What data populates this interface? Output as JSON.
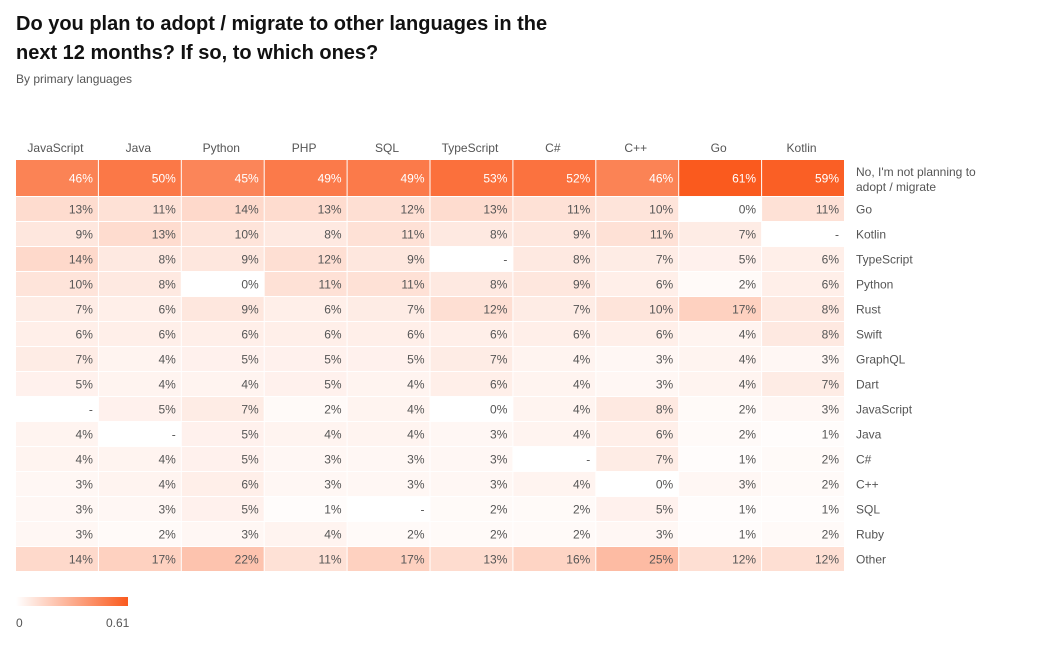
{
  "title": "Do you plan to adopt / migrate to other languages in the next 12 months? If so, to which ones?",
  "subtitle": "By primary languages",
  "legend": {
    "min_label": "0",
    "max_label": "0.61",
    "low_color": "#ffffff",
    "high_color": "#fa5a1e"
  },
  "chart_data": {
    "type": "heatmap",
    "title": "Do you plan to adopt / migrate to other languages in the next 12 months? If so, to which ones?",
    "subtitle": "By primary languages",
    "columns": [
      "JavaScript",
      "Java",
      "Python",
      "PHP",
      "SQL",
      "TypeScript",
      "C#",
      "C++",
      "Go",
      "Kotlin"
    ],
    "rows": [
      {
        "label": "No, I'm not planning to adopt / migrate",
        "cells": [
          "46%",
          "50%",
          "45%",
          "49%",
          "49%",
          "53%",
          "52%",
          "46%",
          "61%",
          "59%"
        ]
      },
      {
        "label": "Go",
        "cells": [
          "13%",
          "11%",
          "14%",
          "13%",
          "12%",
          "13%",
          "11%",
          "10%",
          "0%",
          "11%"
        ]
      },
      {
        "label": "Kotlin",
        "cells": [
          "9%",
          "13%",
          "10%",
          "8%",
          "11%",
          "8%",
          "9%",
          "11%",
          "7%",
          "-"
        ]
      },
      {
        "label": "TypeScript",
        "cells": [
          "14%",
          "8%",
          "9%",
          "12%",
          "9%",
          "-",
          "8%",
          "7%",
          "5%",
          "6%"
        ]
      },
      {
        "label": "Python",
        "cells": [
          "10%",
          "8%",
          "0%",
          "11%",
          "11%",
          "8%",
          "9%",
          "6%",
          "2%",
          "6%"
        ]
      },
      {
        "label": "Rust",
        "cells": [
          "7%",
          "6%",
          "9%",
          "6%",
          "7%",
          "12%",
          "7%",
          "10%",
          "17%",
          "8%"
        ]
      },
      {
        "label": "Swift",
        "cells": [
          "6%",
          "6%",
          "6%",
          "6%",
          "6%",
          "6%",
          "6%",
          "6%",
          "4%",
          "8%"
        ]
      },
      {
        "label": "GraphQL",
        "cells": [
          "7%",
          "4%",
          "5%",
          "5%",
          "5%",
          "7%",
          "4%",
          "3%",
          "4%",
          "3%"
        ]
      },
      {
        "label": "Dart",
        "cells": [
          "5%",
          "4%",
          "4%",
          "5%",
          "4%",
          "6%",
          "4%",
          "3%",
          "4%",
          "7%"
        ]
      },
      {
        "label": "JavaScript",
        "cells": [
          "-",
          "5%",
          "7%",
          "2%",
          "4%",
          "0%",
          "4%",
          "8%",
          "2%",
          "3%"
        ]
      },
      {
        "label": "Java",
        "cells": [
          "4%",
          "-",
          "5%",
          "4%",
          "4%",
          "3%",
          "4%",
          "6%",
          "2%",
          "1%"
        ]
      },
      {
        "label": "C#",
        "cells": [
          "4%",
          "4%",
          "5%",
          "3%",
          "3%",
          "3%",
          "-",
          "7%",
          "1%",
          "2%"
        ]
      },
      {
        "label": "C++",
        "cells": [
          "3%",
          "4%",
          "6%",
          "3%",
          "3%",
          "3%",
          "4%",
          "0%",
          "3%",
          "2%"
        ]
      },
      {
        "label": "SQL",
        "cells": [
          "3%",
          "3%",
          "5%",
          "1%",
          "-",
          "2%",
          "2%",
          "5%",
          "1%",
          "1%"
        ]
      },
      {
        "label": "Ruby",
        "cells": [
          "3%",
          "2%",
          "3%",
          "4%",
          "2%",
          "2%",
          "2%",
          "3%",
          "1%",
          "2%"
        ]
      },
      {
        "label": "Other",
        "cells": [
          "14%",
          "17%",
          "22%",
          "11%",
          "17%",
          "13%",
          "16%",
          "25%",
          "12%",
          "12%"
        ]
      }
    ],
    "color_scale": {
      "min": 0,
      "max": 0.61
    },
    "legend_position": "bottom-left"
  }
}
